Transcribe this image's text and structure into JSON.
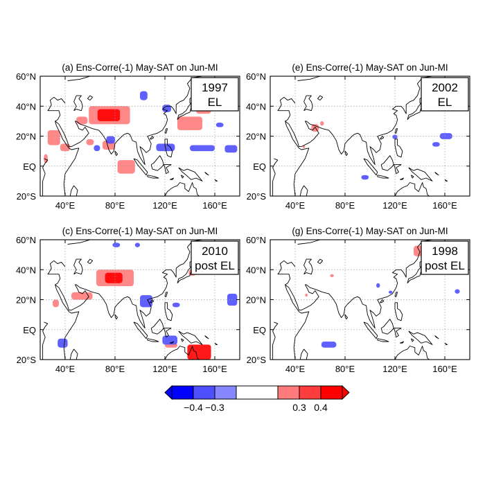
{
  "figure": {
    "panels": [
      {
        "id": "a",
        "title": "(a) Ens-Corre(-1) May-SAT on Jun-MI",
        "box_lines": [
          "1997",
          "EL"
        ],
        "patches": [
          {
            "lon": [
              59,
              92
            ],
            "lat": [
              28,
              40
            ],
            "value": 0.35
          },
          {
            "lon": [
              66,
              84
            ],
            "lat": [
              30,
              38
            ],
            "value": 0.45
          },
          {
            "lon": [
              49,
              58
            ],
            "lat": [
              28,
              33
            ],
            "value": 0.3
          },
          {
            "lon": [
              26,
              36
            ],
            "lat": [
              14,
              24
            ],
            "value": 0.35
          },
          {
            "lon": [
              36,
              44
            ],
            "lat": [
              10,
              15
            ],
            "value": 0.3
          },
          {
            "lon": [
              70,
              80
            ],
            "lat": [
              11,
              17
            ],
            "value": 0.3
          },
          {
            "lon": [
              57,
              63
            ],
            "lat": [
              14,
              18
            ],
            "value": 0.3
          },
          {
            "lon": [
              82,
              96
            ],
            "lat": [
              -5,
              4
            ],
            "value": 0.3
          },
          {
            "lon": [
              130,
              150
            ],
            "lat": [
              24,
              33
            ],
            "value": 0.35
          },
          {
            "lon": [
              145,
              157
            ],
            "lat": [
              35,
              42
            ],
            "value": 0.3
          },
          {
            "lon": [
              23,
              26
            ],
            "lat": [
              2,
              8
            ],
            "value": 0.3
          },
          {
            "lon": [
              100,
              106
            ],
            "lat": [
              44,
              50
            ],
            "value": -0.35
          },
          {
            "lon": [
              73,
              80
            ],
            "lat": [
              15,
              20
            ],
            "value": -0.35
          },
          {
            "lon": [
              63,
              68
            ],
            "lat": [
              10,
              14
            ],
            "value": -0.3
          },
          {
            "lon": [
              113,
              128
            ],
            "lat": [
              10,
              15
            ],
            "value": -0.35
          },
          {
            "lon": [
              140,
              160
            ],
            "lat": [
              10,
              14
            ],
            "value": -0.35
          },
          {
            "lon": [
              168,
              178
            ],
            "lat": [
              9,
              14
            ],
            "value": -0.3
          },
          {
            "lon": [
              118,
              125
            ],
            "lat": [
              36,
              41
            ],
            "value": -0.3
          },
          {
            "lon": [
              161,
              167
            ],
            "lat": [
              26,
              29
            ],
            "value": -0.3
          }
        ]
      },
      {
        "id": "e",
        "title": "(e) Ens-Corre(-1) May-SAT on Jun-MI",
        "box_lines": [
          "2002",
          "EL"
        ],
        "patches": [
          {
            "lon": [
              53,
              59
            ],
            "lat": [
              23,
              28
            ],
            "value": 0.3
          },
          {
            "lon": [
              60,
              63
            ],
            "lat": [
              27,
              30
            ],
            "value": 0.3
          },
          {
            "lon": [
              46,
              48
            ],
            "lat": [
              12,
              14
            ],
            "value": 0.3
          },
          {
            "lon": [
              156,
              166
            ],
            "lat": [
              18,
              22
            ],
            "value": -0.3
          },
          {
            "lon": [
              150,
              156
            ],
            "lat": [
              13,
              16
            ],
            "value": -0.3
          },
          {
            "lon": [
              118,
              122
            ],
            "lat": [
              18,
              21
            ],
            "value": -0.3
          },
          {
            "lon": [
              93,
              99
            ],
            "lat": [
              -9,
              -6
            ],
            "value": -0.3
          }
        ]
      },
      {
        "id": "c",
        "title": "(c) Ens-Corre(-1) May-SAT on Jun-MI",
        "box_lines": [
          "2010",
          "post EL"
        ],
        "patches": [
          {
            "lon": [
              65,
              95
            ],
            "lat": [
              29,
              40
            ],
            "value": 0.35
          },
          {
            "lon": [
              72,
              86
            ],
            "lat": [
              31,
              38
            ],
            "value": 0.45
          },
          {
            "lon": [
              45,
              62
            ],
            "lat": [
              20,
              25
            ],
            "value": 0.35
          },
          {
            "lon": [
              139,
              145
            ],
            "lat": [
              36,
              40
            ],
            "value": 0.3
          },
          {
            "lon": [
              30,
              35
            ],
            "lat": [
              15,
              20
            ],
            "value": 0.3
          },
          {
            "lon": [
              138,
              157
            ],
            "lat": [
              -20,
              -10
            ],
            "value": 0.4
          },
          {
            "lon": [
              120,
              130
            ],
            "lat": [
              -12,
              -9
            ],
            "value": 0.3
          },
          {
            "lon": [
              170,
              178
            ],
            "lat": [
              16,
              24
            ],
            "value": -0.35
          },
          {
            "lon": [
              100,
              110
            ],
            "lat": [
              15,
              23
            ],
            "value": -0.35
          },
          {
            "lon": [
              126,
              132
            ],
            "lat": [
              15,
              18
            ],
            "value": -0.3
          },
          {
            "lon": [
              118,
              130
            ],
            "lat": [
              -10,
              -4
            ],
            "value": -0.35
          },
          {
            "lon": [
              34,
              42
            ],
            "lat": [
              -12,
              -6
            ],
            "value": -0.3
          },
          {
            "lon": [
              78,
              84
            ],
            "lat": [
              55,
              58
            ],
            "value": -0.3
          },
          {
            "lon": [
              96,
              100
            ],
            "lat": [
              55,
              58
            ],
            "value": -0.3
          }
        ]
      },
      {
        "id": "g",
        "title": "(g) Ens-Corre(-1) May-SAT on Jun-MI",
        "box_lines": [
          "1998",
          "post EL"
        ],
        "patches": [
          {
            "lon": [
              135,
              145
            ],
            "lat": [
              49,
              56
            ],
            "value": 0.35
          },
          {
            "lon": [
              61,
              73
            ],
            "lat": [
              -12,
              -8
            ],
            "value": -0.35
          },
          {
            "lon": [
              105,
              108
            ],
            "lat": [
              28,
              31
            ],
            "value": -0.3
          },
          {
            "lon": [
              115,
              118
            ],
            "lat": [
              24,
              26
            ],
            "value": -0.3
          },
          {
            "lon": [
              168,
              172
            ],
            "lat": [
              24,
              27
            ],
            "value": -0.3
          },
          {
            "lon": [
              68,
              71
            ],
            "lat": [
              35,
              37
            ],
            "value": 0.3
          },
          {
            "lon": [
              48,
              50
            ],
            "lat": [
              22,
              24
            ],
            "value": 0.3
          }
        ]
      }
    ],
    "lon_ticks": [
      "40°E",
      "80°E",
      "120°E",
      "160°E"
    ],
    "lat_ticks": [
      "60°N",
      "40°N",
      "20°N",
      "EQ",
      "20°S"
    ],
    "colorbar": {
      "colors": [
        "#0000ff",
        "#4f4fff",
        "#8686ff",
        "#ffffff",
        "#ff7b7b",
        "#ff3d3d",
        "#ff0000"
      ],
      "labels": [
        "−0.4",
        "−0.3",
        "0.3",
        "0.4"
      ]
    }
  },
  "chart_data": {
    "type": "heatmap",
    "description_units": "correlation coefficient",
    "lon_range": [
      20,
      180
    ],
    "lat_range": [
      -20,
      60
    ],
    "lon_ticks": [
      40,
      80,
      120,
      160
    ],
    "lat_ticks": [
      60,
      40,
      20,
      0,
      -20
    ],
    "grid": true,
    "colorbar_levels": [
      -0.4,
      -0.3,
      0.3,
      0.4
    ]
  }
}
